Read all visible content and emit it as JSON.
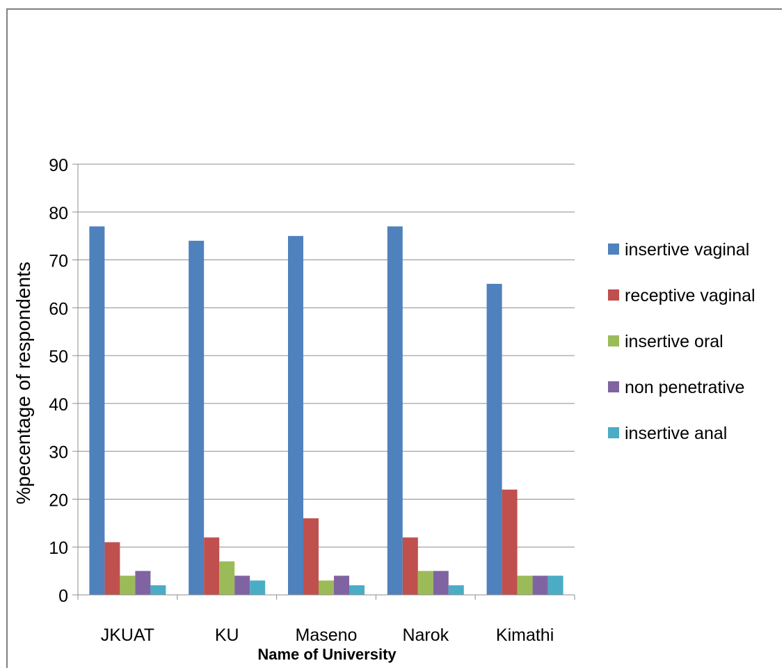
{
  "chart_data": {
    "type": "bar",
    "categories": [
      "JKUAT",
      "KU",
      "Maseno",
      "Narok",
      "Kimathi"
    ],
    "series": [
      {
        "name": "insertive vaginal",
        "color": "#4F81BD",
        "values": [
          77,
          74,
          75,
          77,
          65
        ]
      },
      {
        "name": "receptive vaginal",
        "color": "#C0504D",
        "values": [
          11,
          12,
          16,
          12,
          22
        ]
      },
      {
        "name": "insertive oral",
        "color": "#9BBB59",
        "values": [
          4,
          7,
          3,
          5,
          4
        ]
      },
      {
        "name": "non penetrative",
        "color": "#8064A2",
        "values": [
          5,
          4,
          4,
          5,
          4
        ]
      },
      {
        "name": "insertive anal",
        "color": "#4BACC6",
        "values": [
          2,
          3,
          2,
          2,
          4
        ]
      }
    ],
    "title": "",
    "xlabel": "Name of University",
    "ylabel": "%pecentage of respondents",
    "ylim": [
      0,
      90
    ],
    "yticks": [
      0,
      10,
      20,
      30,
      40,
      50,
      60,
      70,
      80,
      90
    ],
    "grid": true,
    "legend_position": "right"
  }
}
